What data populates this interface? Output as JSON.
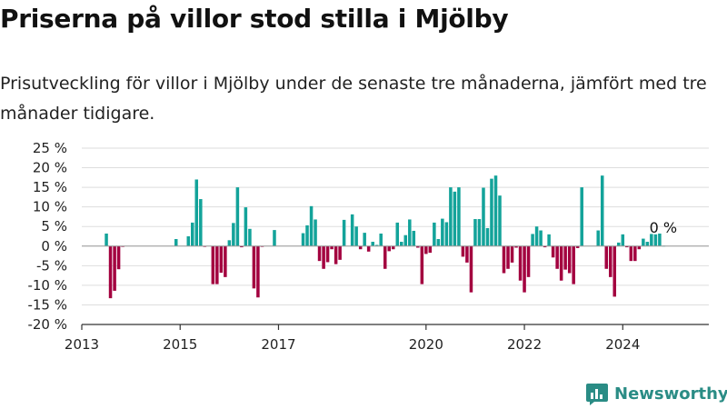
{
  "title": "Priserna på villor stod stilla i Mjölby",
  "subtitle": "Prisutveckling för villor i Mjölby under de senaste tre månaderna, jämfört med tre månader tidigare.",
  "brand": {
    "name": "Newsworthy",
    "icon": "bar-chart-logo-icon"
  },
  "colors": {
    "positive": "#13a39a",
    "negative": "#a3003f",
    "grid": "#dddddd",
    "axis": "#333333"
  },
  "chart_data": {
    "type": "bar",
    "ylabel": "",
    "xlabel": "",
    "ylim": [
      -20,
      25
    ],
    "yticks": [
      -20,
      -15,
      -10,
      -5,
      0,
      5,
      10,
      15,
      20,
      25
    ],
    "ytick_labels": [
      "-20 %",
      "-15 %",
      "-10 %",
      "-5 %",
      "0 %",
      "5 %",
      "10 %",
      "15 %",
      "20 %",
      "25 %"
    ],
    "xlim": [
      2013.0,
      2025.75
    ],
    "xticks": [
      2013,
      2015,
      2017,
      2020,
      2022,
      2024
    ],
    "xtick_labels": [
      "2013",
      "2015",
      "2017",
      "2020",
      "2022",
      "2024"
    ],
    "grid": true,
    "annotation": {
      "text": "0 %",
      "x": 2024.75
    },
    "x": [
      2013.5,
      2013.583,
      2013.667,
      2013.75,
      2013.833,
      2014.917,
      2015.167,
      2015.25,
      2015.333,
      2015.417,
      2015.5,
      2015.667,
      2015.75,
      2015.833,
      2015.917,
      2016.0,
      2016.083,
      2016.167,
      2016.25,
      2016.333,
      2016.417,
      2016.5,
      2016.583,
      2016.667,
      2016.917,
      2017.5,
      2017.583,
      2017.667,
      2017.75,
      2017.833,
      2017.917,
      2018.0,
      2018.083,
      2018.167,
      2018.25,
      2018.333,
      2018.5,
      2018.583,
      2018.667,
      2018.75,
      2018.833,
      2018.917,
      2019.0,
      2019.083,
      2019.167,
      2019.25,
      2019.333,
      2019.417,
      2019.5,
      2019.583,
      2019.667,
      2019.75,
      2019.833,
      2019.917,
      2020.0,
      2020.083,
      2020.167,
      2020.25,
      2020.333,
      2020.417,
      2020.5,
      2020.583,
      2020.667,
      2020.75,
      2020.833,
      2020.917,
      2021.0,
      2021.083,
      2021.167,
      2021.25,
      2021.333,
      2021.417,
      2021.5,
      2021.583,
      2021.667,
      2021.75,
      2021.833,
      2021.917,
      2022.0,
      2022.083,
      2022.167,
      2022.25,
      2022.333,
      2022.417,
      2022.5,
      2022.583,
      2022.667,
      2022.75,
      2022.833,
      2022.917,
      2023.0,
      2023.083,
      2023.167,
      2023.5,
      2023.583,
      2023.667,
      2023.75,
      2023.833,
      2023.917,
      2024.0,
      2024.083,
      2024.167,
      2024.25,
      2024.333,
      2024.417,
      2024.5,
      2024.583,
      2024.667,
      2024.75,
      2024.833
    ],
    "values": [
      3.2,
      -13.3,
      -11.4,
      -5.9,
      -0.2,
      1.8,
      2.5,
      6,
      17,
      12,
      -0.2,
      -9.7,
      -9.7,
      -6.8,
      -7.9,
      1.5,
      5.9,
      15,
      -0.3,
      9.9,
      4.4,
      -10.8,
      -13.1,
      -0.2,
      4.1,
      3.3,
      5.3,
      10.2,
      6.8,
      -3.8,
      -5.8,
      -4.1,
      -0.8,
      -4.6,
      -3.5,
      6.7,
      8.1,
      5,
      -0.8,
      3.4,
      -1.4,
      1.1,
      0.3,
      3.2,
      -5.8,
      -1.3,
      -0.8,
      6,
      1.1,
      2.8,
      6.8,
      3.9,
      -0.4,
      -9.7,
      -2,
      -1.7,
      6,
      1.8,
      7,
      6.1,
      15,
      13.9,
      15,
      -2.7,
      -4.2,
      -11.8,
      6.9,
      6.9,
      14.9,
      4.6,
      17.2,
      18,
      12.9,
      -6.9,
      -5.8,
      -4.2,
      -0.4,
      -8.8,
      -11.8,
      -7.9,
      3.1,
      5,
      4,
      -0.3,
      3,
      -2.9,
      -5.8,
      -8.8,
      -6,
      -6.9,
      -9.7,
      -0.5,
      15,
      4,
      18,
      -5.8,
      -7.9,
      -12.9,
      0.9,
      3,
      -0.3,
      -3.8,
      -3.8,
      -0.8,
      1.9,
      1.1,
      3.1,
      3,
      3.2,
      0.1
    ]
  }
}
